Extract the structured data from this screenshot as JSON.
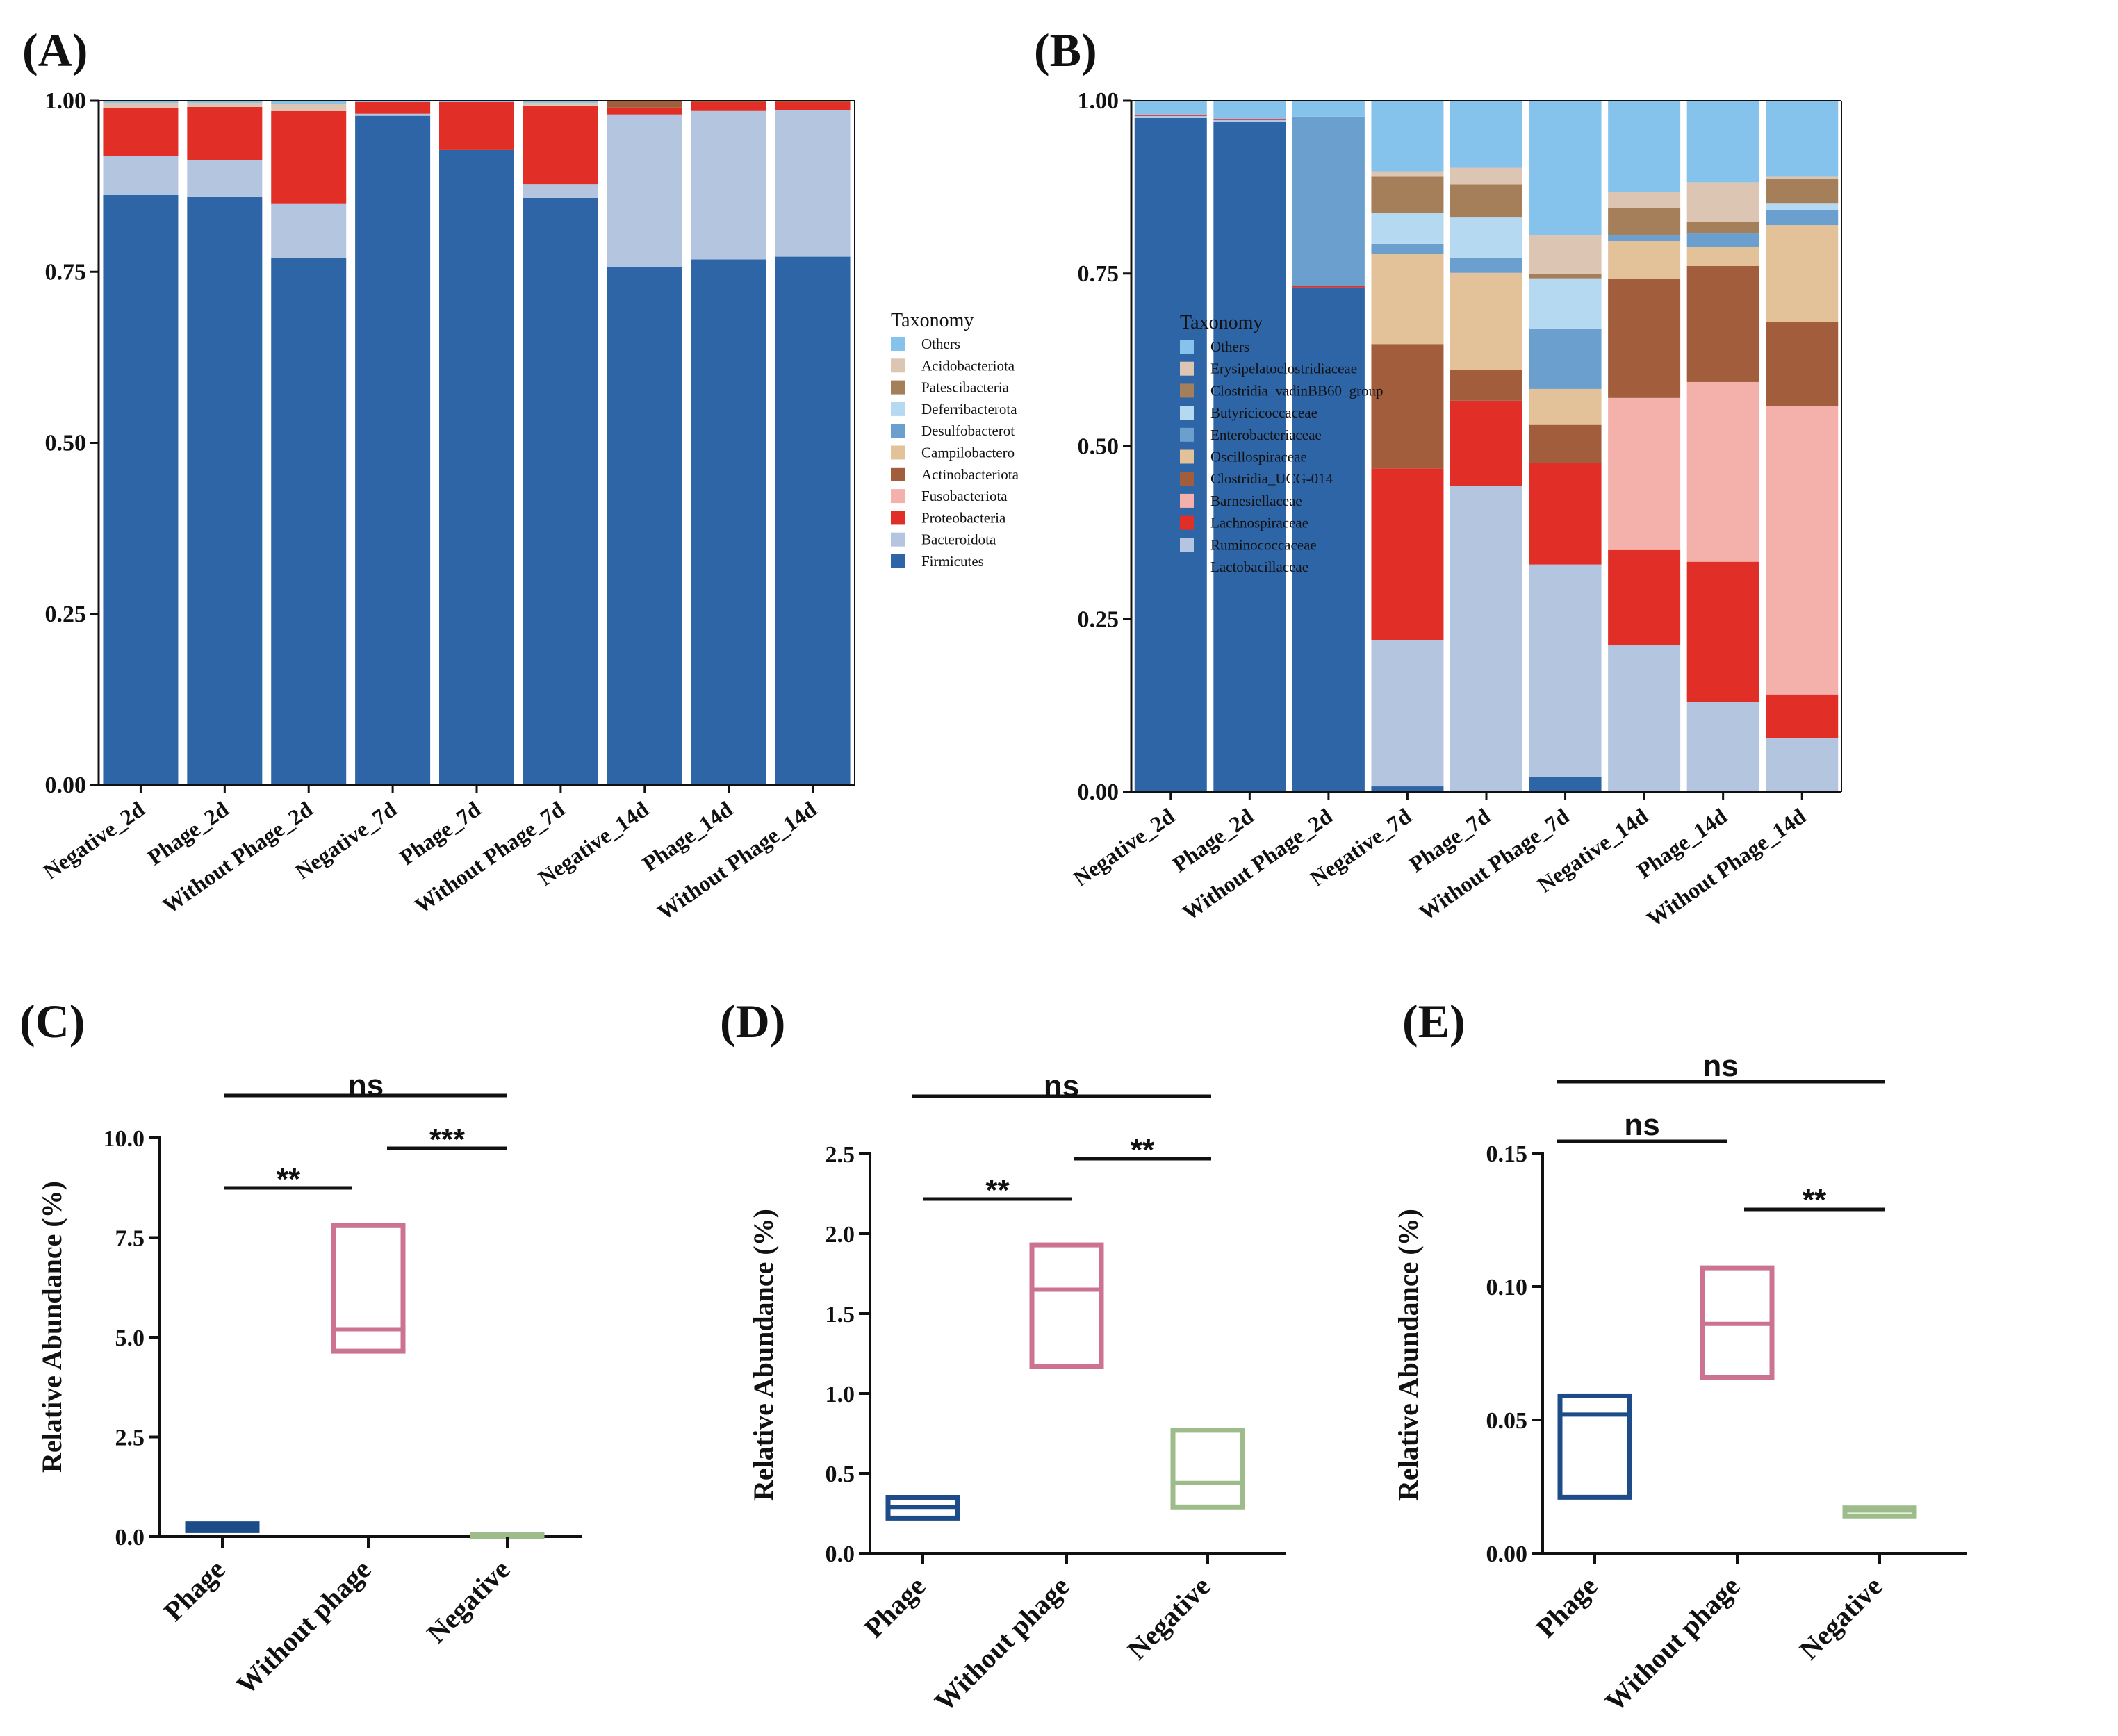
{
  "colors": {
    "Others": "#86C3EC",
    "Acidobacteriota": "#DCC6B3",
    "Patescibacteria": "#A57E5A",
    "Deferribacterota": "#B6D9F2",
    "Desulfobacterota": "#6B9FCE",
    "Campilobacterota": "#E3C199",
    "Actinobacteriota": "#A25E3C",
    "Fusobacteriota": "#F4B1AC",
    "Proteobacteria": "#E12F27",
    "Bacteroidota": "#B4C6DF",
    "Firmicutes": "#2E65A6",
    "Erysipelatoclostridiaceae": "#DCC6B3",
    "Clostridia_vadinBB60_group": "#A57E5A",
    "Butyricicoccaceae": "#B6D9F2",
    "Enterobacteriaceae": "#6B9FCE",
    "Oscillospiraceae": "#E3C199",
    "Clostridia_UCG-014": "#A25E3C",
    "Barnesiellaceae": "#F4B1AC",
    "Lachnospiraceae": "#E12F27",
    "Ruminococcaceae": "#B4C6DF",
    "Lactobacillaceae": "#2E65A6",
    "phage": "#1D4C88",
    "without": "#CC7393",
    "negative": "#9DBC8A"
  },
  "chart_data": [
    {
      "id": "A",
      "panel_label": "(A)",
      "type": "stacked-bar",
      "categories": [
        "Negative_2d",
        "Phage_2d",
        "Without Phage_2d",
        "Negative_7d",
        "Phage_7d",
        "Without Phage_7d",
        "Negative_14d",
        "Phage_14d",
        "Without Phage_14d"
      ],
      "ylim": [
        0,
        1
      ],
      "yticks": [
        "0.00",
        "0.25",
        "0.50",
        "0.75",
        "1.00"
      ],
      "legend_title": "Taxonomy",
      "legend": [
        "Others",
        "Acidobacteriota",
        "Patescibacteria",
        "Deferribacterota",
        "Desulfobacterot",
        "Campilobactero",
        "Actinobacteriota",
        "Fusobacteriota",
        "Proteobacteria",
        "Bacteroidota",
        "Firmicutes"
      ],
      "series": [
        {
          "name": "Firmicutes",
          "values": [
            0.862,
            0.86,
            0.77,
            0.978,
            0.928,
            0.858,
            0.757,
            0.768,
            0.772
          ]
        },
        {
          "name": "Bacteroidota",
          "values": [
            0.057,
            0.053,
            0.08,
            0.003,
            0.0,
            0.02,
            0.223,
            0.217,
            0.214
          ]
        },
        {
          "name": "Fusobacteriota",
          "values": [
            0.0,
            0.0,
            0.0,
            0.0,
            0.0,
            0.0,
            0.0,
            0.0,
            0.0
          ]
        },
        {
          "name": "Proteobacteria",
          "values": [
            0.07,
            0.078,
            0.135,
            0.017,
            0.07,
            0.115,
            0.01,
            0.013,
            0.012
          ]
        },
        {
          "name": "Actinobacteriota",
          "values": [
            0.0,
            0.0,
            0.0,
            0.0,
            0.0,
            0.0,
            0.01,
            0.002,
            0.002
          ]
        },
        {
          "name": "Campilobacterota",
          "values": [
            0.0,
            0.0,
            0.0,
            0.0,
            0.0,
            0.0,
            0.0,
            0.0,
            0.0
          ]
        },
        {
          "name": "Desulfobacterota",
          "values": [
            0.0,
            0.0,
            0.0,
            0.0,
            0.0,
            0.0,
            0.0,
            0.0,
            0.0
          ]
        },
        {
          "name": "Deferribacterota",
          "values": [
            0.0,
            0.0,
            0.0,
            0.0,
            0.0,
            0.0,
            0.0,
            0.0,
            0.0
          ]
        },
        {
          "name": "Patescibacteria",
          "values": [
            0.0,
            0.0,
            0.0,
            0.0,
            0.0,
            0.0,
            0.0,
            0.0,
            0.0
          ]
        },
        {
          "name": "Acidobacteriota",
          "values": [
            0.008,
            0.006,
            0.01,
            0.0,
            0.0,
            0.004,
            0.0,
            0.0,
            0.0
          ]
        },
        {
          "name": "Others",
          "values": [
            0.003,
            0.003,
            0.005,
            0.002,
            0.002,
            0.003,
            0.0,
            0.0,
            0.0
          ]
        }
      ]
    },
    {
      "id": "B",
      "panel_label": "(B)",
      "type": "stacked-bar",
      "categories": [
        "Negative_2d",
        "Phage_2d",
        "Without Phage_2d",
        "Negative_7d",
        "Phage_7d",
        "Without Phage_7d",
        "Negative_14d",
        "Phage_14d",
        "Without Phage_14d"
      ],
      "ylim": [
        0,
        1
      ],
      "yticks": [
        "0.00",
        "0.25",
        "0.50",
        "0.75",
        "1.00"
      ],
      "legend_title": "Taxonomy",
      "legend": [
        "Others",
        "Erysipelatoclostridiaceae",
        "Clostridia_vadinBB60_group",
        "Butyricicoccaceae",
        "Enterobacteriaceae",
        "Oscillospiraceae",
        "Clostridia_UCG-014",
        "Barnesiellaceae",
        "Lachnospiraceae",
        "Ruminococcaceae",
        "Lactobacillaceae"
      ],
      "series": [
        {
          "name": "Lactobacillaceae",
          "values": [
            0.975,
            0.97,
            0.73,
            0.008,
            0.0,
            0.022,
            0.0,
            0.0,
            0.0
          ]
        },
        {
          "name": "Ruminococcaceae",
          "values": [
            0.003,
            0.002,
            0.0,
            0.212,
            0.443,
            0.307,
            0.212,
            0.13,
            0.078
          ]
        },
        {
          "name": "Lachnospiraceae",
          "values": [
            0.002,
            0.001,
            0.002,
            0.248,
            0.123,
            0.147,
            0.138,
            0.203,
            0.063
          ]
        },
        {
          "name": "Barnesiellaceae",
          "values": [
            0.0,
            0.0,
            0.0,
            0.0,
            0.0,
            0.0,
            0.22,
            0.26,
            0.417
          ]
        },
        {
          "name": "Clostridia_UCG-014",
          "values": [
            0.0,
            0.0,
            0.0,
            0.18,
            0.045,
            0.055,
            0.172,
            0.168,
            0.122
          ]
        },
        {
          "name": "Oscillospiraceae",
          "values": [
            0.0,
            0.0,
            0.0,
            0.13,
            0.14,
            0.052,
            0.055,
            0.027,
            0.14
          ]
        },
        {
          "name": "Enterobacteriaceae",
          "values": [
            0.0,
            0.0,
            0.245,
            0.015,
            0.022,
            0.087,
            0.008,
            0.02,
            0.022
          ]
        },
        {
          "name": "Butyricicoccaceae",
          "values": [
            0.0,
            0.0,
            0.0,
            0.045,
            0.058,
            0.073,
            0.0,
            0.0,
            0.01
          ]
        },
        {
          "name": "Clostridia_vadinBB60_group",
          "values": [
            0.0,
            0.0,
            0.0,
            0.052,
            0.048,
            0.006,
            0.04,
            0.017,
            0.035
          ]
        },
        {
          "name": "Erysipelatoclostridiaceae",
          "values": [
            0.0,
            0.0,
            0.0,
            0.008,
            0.024,
            0.056,
            0.023,
            0.057,
            0.003
          ]
        },
        {
          "name": "Others",
          "values": [
            0.02,
            0.027,
            0.023,
            0.102,
            0.097,
            0.195,
            0.132,
            0.118,
            0.11
          ]
        }
      ]
    },
    {
      "id": "C",
      "panel_label": "(C)",
      "type": "box",
      "ylabel": "Relative Abundance (%)",
      "ylim": [
        0,
        10
      ],
      "yticks": [
        "0.0",
        "2.5",
        "5.0",
        "7.5",
        "10.0"
      ],
      "categories": [
        "Phage",
        "Without phage",
        "Negative"
      ],
      "boxes": [
        {
          "group": "Phage",
          "low": 0.15,
          "median": 0.25,
          "high": 0.32
        },
        {
          "group": "Without phage",
          "low": 4.65,
          "median": 5.2,
          "high": 7.8
        },
        {
          "group": "Negative",
          "low": 0.02,
          "median": 0.04,
          "high": 0.06
        }
      ],
      "comparisons": [
        {
          "label": "ns",
          "from": 0,
          "to": 2
        },
        {
          "label": "**",
          "from": 0,
          "to": 1
        },
        {
          "label": "***",
          "from": 1,
          "to": 2
        }
      ]
    },
    {
      "id": "D",
      "panel_label": "(D)",
      "type": "box",
      "ylabel": "Relative Abundance (%)",
      "ylim": [
        0,
        2.5
      ],
      "yticks": [
        "0.0",
        "0.5",
        "1.0",
        "1.5",
        "2.0",
        "2.5"
      ],
      "categories": [
        "Phage",
        "Without phage",
        "Negative"
      ],
      "boxes": [
        {
          "group": "Phage",
          "low": 0.22,
          "median": 0.29,
          "high": 0.35
        },
        {
          "group": "Without phage",
          "low": 1.17,
          "median": 1.65,
          "high": 1.93
        },
        {
          "group": "Negative",
          "low": 0.29,
          "median": 0.44,
          "high": 0.77
        }
      ],
      "comparisons": [
        {
          "label": "ns",
          "from": 0,
          "to": 2
        },
        {
          "label": "**",
          "from": 0,
          "to": 1
        },
        {
          "label": "**",
          "from": 1,
          "to": 2
        }
      ]
    },
    {
      "id": "E",
      "panel_label": "(E)",
      "type": "box",
      "ylabel": "Relative Abundance (%)",
      "ylim": [
        0,
        0.15
      ],
      "yticks": [
        "0.00",
        "0.05",
        "0.10",
        "0.15"
      ],
      "categories": [
        "Phage",
        "Without phage",
        "Negative"
      ],
      "boxes": [
        {
          "group": "Phage",
          "low": 0.021,
          "median": 0.052,
          "high": 0.059
        },
        {
          "group": "Without phage",
          "low": 0.066,
          "median": 0.086,
          "high": 0.107
        },
        {
          "group": "Negative",
          "low": 0.014,
          "median": 0.016,
          "high": 0.017
        }
      ],
      "comparisons": [
        {
          "label": "ns",
          "from": 0,
          "to": 2
        },
        {
          "label": "ns",
          "from": 0,
          "to": 1
        },
        {
          "label": "**",
          "from": 1,
          "to": 2
        }
      ]
    }
  ]
}
